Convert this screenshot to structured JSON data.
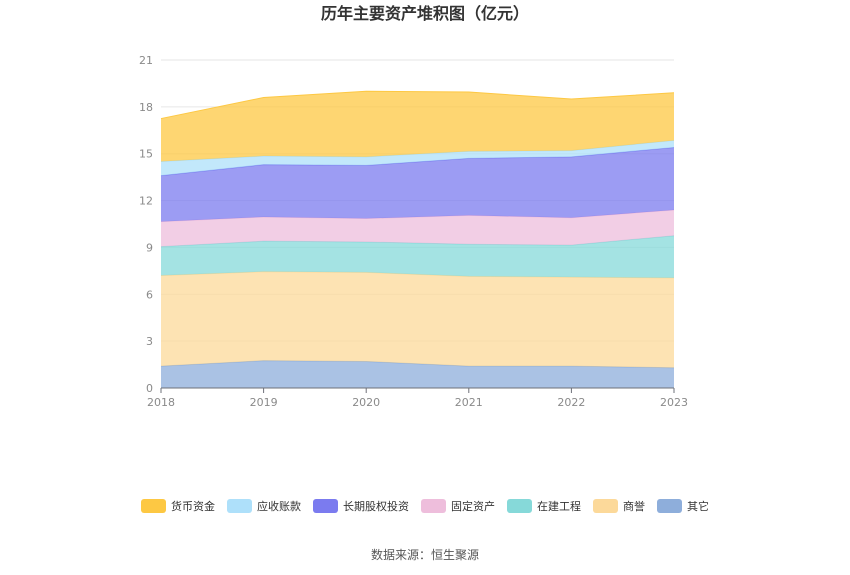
{
  "chart_data": {
    "type": "area",
    "stacked": true,
    "title": "历年主要资产堆积图（亿元）",
    "categories": [
      "2018",
      "2019",
      "2020",
      "2021",
      "2022",
      "2023"
    ],
    "ylim": [
      0,
      21
    ],
    "yticks": [
      "0",
      "3",
      "6",
      "9",
      "12",
      "15",
      "18",
      "21"
    ],
    "grid": true,
    "legend_position": "bottom",
    "series": [
      {
        "name": "其它",
        "color": "#8eaedb",
        "values": [
          1.4,
          1.75,
          1.7,
          1.4,
          1.4,
          1.3
        ]
      },
      {
        "name": "商誉",
        "color": "#fcd99a",
        "values": [
          5.8,
          5.7,
          5.7,
          5.75,
          5.7,
          5.75
        ]
      },
      {
        "name": "在建工程",
        "color": "#86d9d9",
        "values": [
          1.85,
          1.95,
          1.95,
          2.05,
          2.05,
          2.7
        ]
      },
      {
        "name": "固定资产",
        "color": "#eebedc",
        "values": [
          1.6,
          1.55,
          1.5,
          1.85,
          1.75,
          1.65
        ]
      },
      {
        "name": "长期股权投资",
        "color": "#7b7bef",
        "values": [
          2.95,
          3.35,
          3.4,
          3.65,
          3.9,
          4.0
        ]
      },
      {
        "name": "应收账款",
        "color": "#aee0fa",
        "values": [
          0.9,
          0.55,
          0.55,
          0.45,
          0.4,
          0.45
        ]
      },
      {
        "name": "货币资金",
        "color": "#fdc843",
        "values": [
          2.75,
          3.75,
          4.2,
          3.8,
          3.3,
          3.05
        ]
      }
    ],
    "legend_order": [
      "货币资金",
      "应收账款",
      "长期股权投资",
      "固定资产",
      "在建工程",
      "商誉",
      "其它"
    ]
  },
  "source": "数据来源：恒生聚源"
}
